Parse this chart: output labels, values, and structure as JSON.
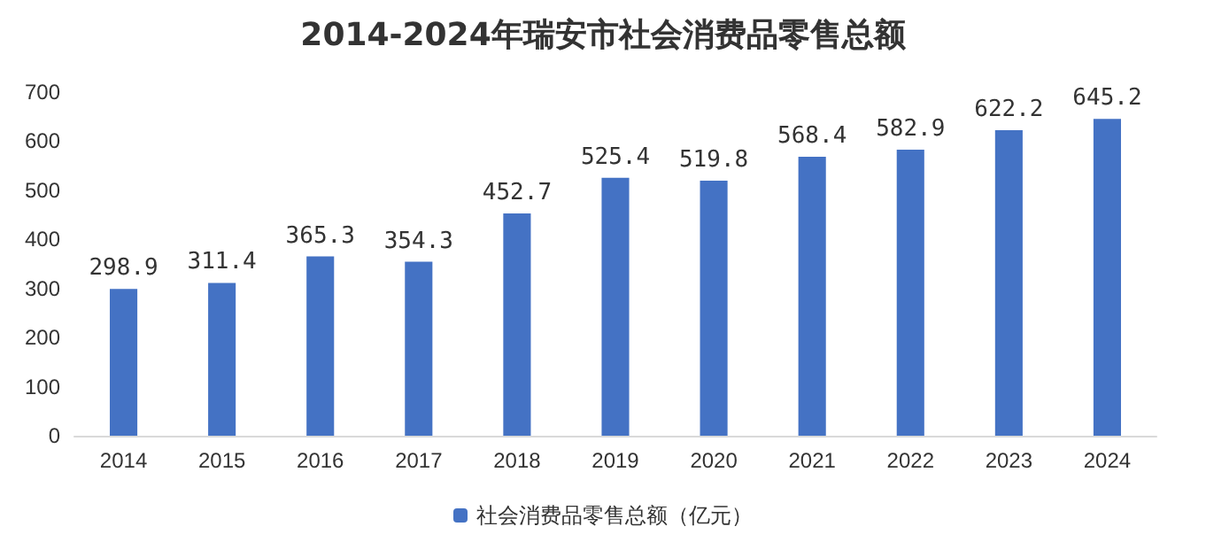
{
  "chart_data": {
    "type": "bar",
    "title": "2014-2024年瑞安市社会消费品零售总额",
    "categories": [
      "2014",
      "2015",
      "2016",
      "2017",
      "2018",
      "2019",
      "2020",
      "2021",
      "2022",
      "2023",
      "2024"
    ],
    "series": [
      {
        "name": "社会消费品零售总额（亿元）",
        "color": "#4472c4",
        "values": [
          298.9,
          311.4,
          365.3,
          354.3,
          452.7,
          525.4,
          519.8,
          568.4,
          582.9,
          622.2,
          645.2
        ]
      }
    ],
    "ylim": [
      0,
      700
    ],
    "yticks": [
      0,
      100,
      200,
      300,
      400,
      500,
      600,
      700
    ],
    "grid": false,
    "legend": "bottom",
    "data_labels": true
  }
}
